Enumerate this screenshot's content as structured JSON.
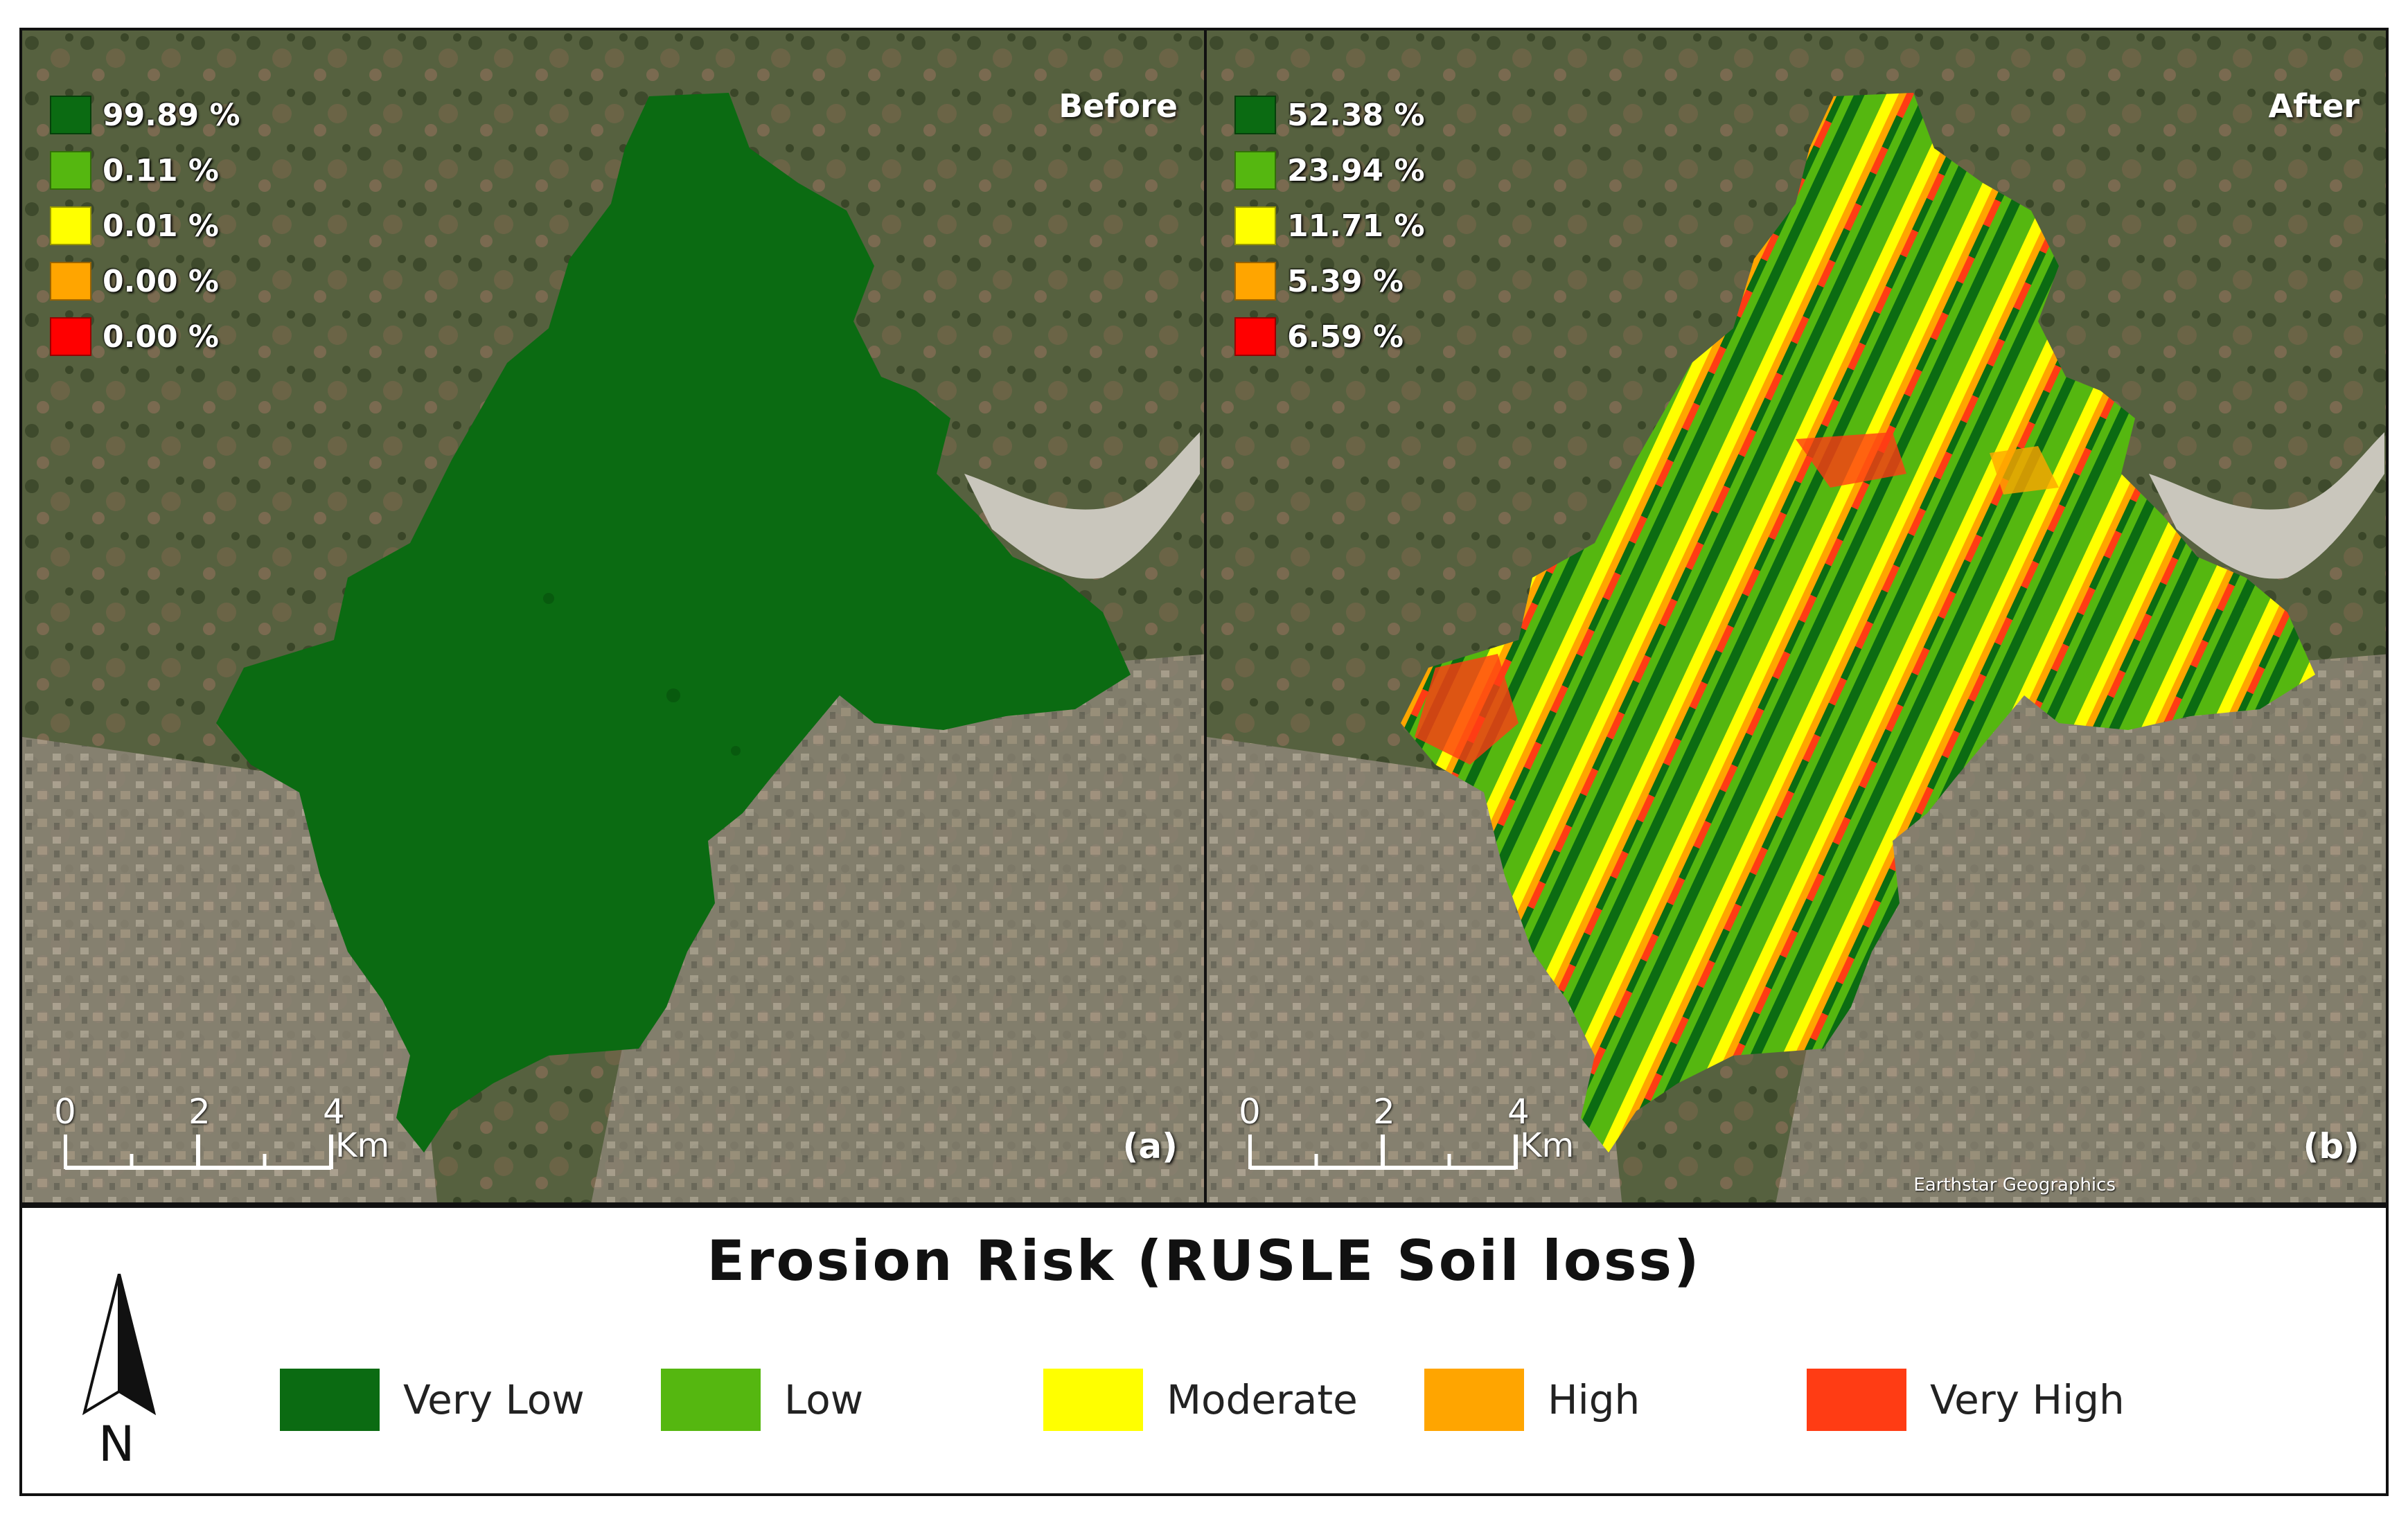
{
  "colors": {
    "very_low": "#0b6b12",
    "low": "#55b710",
    "moderate": "#ffff00",
    "high": "#ffa500",
    "very_high": "#ff3c14",
    "pct_red": "#ff0000"
  },
  "panels": {
    "before": {
      "title": "Before",
      "tag": "(a)",
      "percentages": [
        "99.89 %",
        "0.11 %",
        "0.01 %",
        "0.00 %",
        "0.00 %"
      ]
    },
    "after": {
      "title": "After",
      "tag": "(b)",
      "percentages": [
        "52.38 %",
        "23.94 %",
        "11.71 %",
        "5.39 %",
        "6.59 %"
      ],
      "attribution": "Earthstar Geographics"
    }
  },
  "scalebar": {
    "ticks": [
      "0",
      "2",
      "4"
    ],
    "unit": "Km"
  },
  "legend": {
    "title": "Erosion Risk (RUSLE Soil loss)",
    "north_label": "N",
    "classes": [
      "Very Low",
      "Low",
      "Moderate",
      "High",
      "Very High"
    ]
  }
}
